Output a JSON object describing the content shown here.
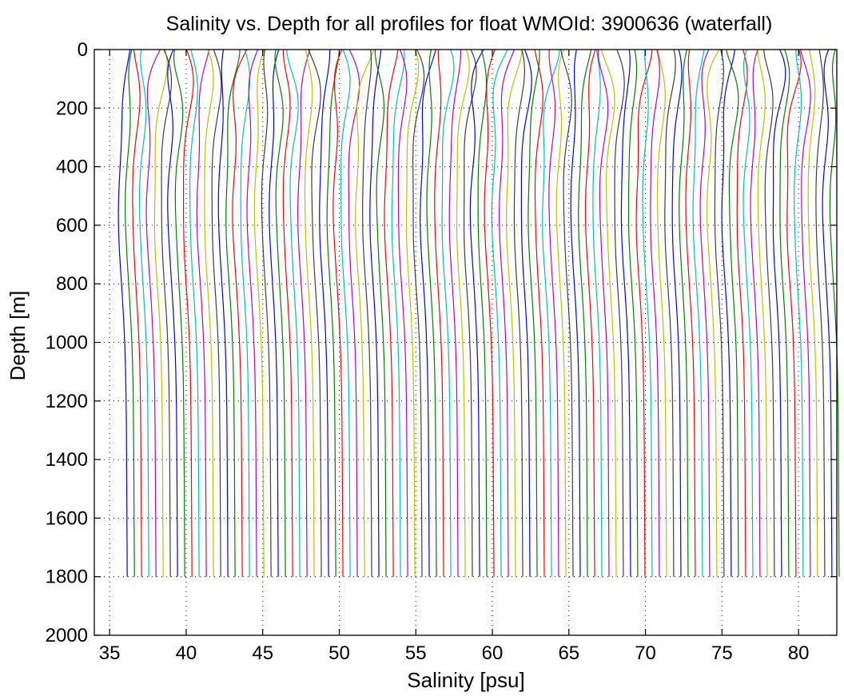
{
  "chart_data": {
    "type": "line",
    "title": "Salinity vs. Depth for all profiles for float WMOId: 3900636 (waterfall)",
    "xlabel": "Salinity [psu]",
    "ylabel": "Depth [m]",
    "xlim": [
      34,
      82.5
    ],
    "ylim": [
      0,
      2000
    ],
    "y_reversed": true,
    "grid": true,
    "x_ticks": [
      35,
      40,
      45,
      50,
      55,
      60,
      65,
      70,
      75,
      80
    ],
    "y_ticks": [
      0,
      200,
      400,
      600,
      800,
      1000,
      1200,
      1400,
      1600,
      1800,
      2000
    ],
    "waterfall": {
      "profile_count": 100,
      "first_offset_psu": 35.0,
      "last_offset_psu": 81.5,
      "max_depth_m": 1810,
      "series_colors": [
        "#0000ff",
        "#008000",
        "#ff0000",
        "#00bfbf",
        "#bf00bf",
        "#bfbf00",
        "#3f3f3f"
      ]
    }
  }
}
